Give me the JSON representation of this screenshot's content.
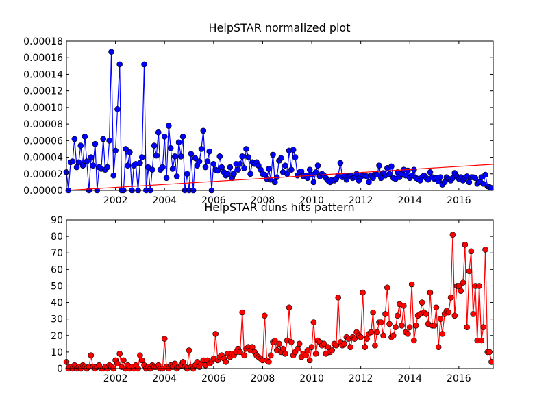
{
  "chart_data": [
    {
      "type": "line",
      "title": "HelpSTAR normalized plot",
      "xlim": [
        2000,
        2017.4
      ],
      "xticks": [
        2002,
        2004,
        2006,
        2008,
        2010,
        2012,
        2014,
        2016
      ],
      "ylim": [
        0,
        0.00018
      ],
      "yticks": [
        {
          "value": 0,
          "label": "0.00000"
        },
        {
          "value": 2e-05,
          "label": "0.00002"
        },
        {
          "value": 4e-05,
          "label": "0.00004"
        },
        {
          "value": 6e-05,
          "label": "0.00006"
        },
        {
          "value": 8e-05,
          "label": "0.00008"
        },
        {
          "value": 0.0001,
          "label": "0.00010"
        },
        {
          "value": 0.00012,
          "label": "0.00012"
        },
        {
          "value": 0.00014,
          "label": "0.00014"
        },
        {
          "value": 0.00016,
          "label": "0.00016"
        },
        {
          "value": 0.00018,
          "label": "0.00018"
        }
      ],
      "series": [
        {
          "color": "#0000ff",
          "marker": true,
          "x": [
            2000,
            2000.08,
            2000.17,
            2000.25,
            2000.33,
            2000.42,
            2000.5,
            2000.58,
            2000.67,
            2000.75,
            2000.83,
            2000.92,
            2001,
            2001.08,
            2001.17,
            2001.25,
            2001.33,
            2001.42,
            2001.5,
            2001.58,
            2001.67,
            2001.75,
            2001.83,
            2001.92,
            2002,
            2002.08,
            2002.17,
            2002.25,
            2002.33,
            2002.42,
            2002.5,
            2002.58,
            2002.67,
            2002.75,
            2002.83,
            2002.92,
            2003,
            2003.08,
            2003.17,
            2003.25,
            2003.33,
            2003.42,
            2003.5,
            2003.58,
            2003.67,
            2003.75,
            2003.83,
            2003.92,
            2004,
            2004.08,
            2004.17,
            2004.25,
            2004.33,
            2004.42,
            2004.5,
            2004.58,
            2004.67,
            2004.75,
            2004.83,
            2004.92,
            2005,
            2005.08,
            2005.17,
            2005.25,
            2005.33,
            2005.42,
            2005.5,
            2005.58,
            2005.67,
            2005.75,
            2005.83,
            2005.92,
            2006,
            2006.08,
            2006.17,
            2006.25,
            2006.33,
            2006.42,
            2006.5,
            2006.58,
            2006.67,
            2006.75,
            2006.83,
            2006.92,
            2007,
            2007.08,
            2007.17,
            2007.25,
            2007.33,
            2007.42,
            2007.5,
            2007.58,
            2007.67,
            2007.75,
            2007.83,
            2007.92,
            2008,
            2008.08,
            2008.17,
            2008.25,
            2008.33,
            2008.42,
            2008.5,
            2008.58,
            2008.67,
            2008.75,
            2008.83,
            2008.92,
            2009,
            2009.08,
            2009.17,
            2009.25,
            2009.33,
            2009.42,
            2009.5,
            2009.58,
            2009.67,
            2009.75,
            2009.83,
            2009.92,
            2010,
            2010.08,
            2010.17,
            2010.25,
            2010.33,
            2010.42,
            2010.5,
            2010.58,
            2010.67,
            2010.75,
            2010.83,
            2010.92,
            2011,
            2011.08,
            2011.17,
            2011.25,
            2011.33,
            2011.42,
            2011.5,
            2011.58,
            2011.67,
            2011.75,
            2011.83,
            2011.92,
            2012,
            2012.08,
            2012.17,
            2012.25,
            2012.33,
            2012.42,
            2012.5,
            2012.58,
            2012.67,
            2012.75,
            2012.83,
            2012.92,
            2013,
            2013.08,
            2013.17,
            2013.25,
            2013.33,
            2013.42,
            2013.5,
            2013.58,
            2013.67,
            2013.75,
            2013.83,
            2013.92,
            2014,
            2014.08,
            2014.17,
            2014.25,
            2014.33,
            2014.42,
            2014.5,
            2014.58,
            2014.67,
            2014.75,
            2014.83,
            2014.92,
            2015,
            2015.08,
            2015.17,
            2015.25,
            2015.33,
            2015.42,
            2015.5,
            2015.58,
            2015.67,
            2015.75,
            2015.83,
            2015.92,
            2016,
            2016.08,
            2016.17,
            2016.25,
            2016.33,
            2016.42,
            2016.5,
            2016.58,
            2016.67,
            2016.75,
            2016.83,
            2016.92,
            2017,
            2017.08,
            2017.17,
            2017.25,
            2017.33
          ],
          "values": [
            2.2e-05,
            0,
            3.4e-05,
            3.5e-05,
            6.2e-05,
            2.8e-05,
            3.4e-05,
            5.4e-05,
            3e-05,
            6.5e-05,
            3.5e-05,
            0,
            4e-05,
            3e-05,
            5.6e-05,
            0,
            2.8e-05,
            2.6e-05,
            6.2e-05,
            2.5e-05,
            2.8e-05,
            6e-05,
            0.000167,
            1.8e-05,
            4.8e-05,
            9.8e-05,
            0.000152,
            0,
            0,
            5e-05,
            3e-05,
            4.6e-05,
            0,
            3e-05,
            3.2e-05,
            0,
            3.3e-05,
            4e-05,
            0.000152,
            0,
            2.8e-05,
            0,
            2.5e-05,
            5.4e-05,
            4.2e-05,
            7e-05,
            2.5e-05,
            2.8e-05,
            6.5e-05,
            1.5e-05,
            7.8e-05,
            5.1e-05,
            2.6e-05,
            4.1e-05,
            1.7e-05,
            5.8e-05,
            4.1e-05,
            6.5e-05,
            0,
            2e-05,
            0,
            4.4e-05,
            0,
            3.9e-05,
            3e-05,
            3.5e-05,
            5e-05,
            7.2e-05,
            2.8e-05,
            3.5e-05,
            4.7e-05,
            0,
            3.2e-05,
            2.5e-05,
            2.4e-05,
            4.1e-05,
            2.8e-05,
            2.2e-05,
            1.8e-05,
            2e-05,
            2.8e-05,
            1.5e-05,
            2e-05,
            3.2e-05,
            2.5e-05,
            3.2e-05,
            4.1e-05,
            2.7e-05,
            5e-05,
            4e-05,
            2e-05,
            3.4e-05,
            3.2e-05,
            3.4e-05,
            3e-05,
            2.5e-05,
            2e-05,
            1.9e-05,
            1.4e-05,
            2.6e-05,
            1.3e-05,
            4.3e-05,
            1e-05,
            1.6e-05,
            3.6e-05,
            3.9e-05,
            2.2e-05,
            3e-05,
            2e-05,
            4.8e-05,
            2.5e-05,
            4.9e-05,
            4e-05,
            1.8e-05,
            2.2e-05,
            2.3e-05,
            1.7e-05,
            1.8e-05,
            1.5e-05,
            2.5e-05,
            1.9e-05,
            1e-05,
            2.2e-05,
            3e-05,
            1.7e-05,
            2e-05,
            1.8e-05,
            1.5e-05,
            1.2e-05,
            1e-05,
            1.3e-05,
            1.2e-05,
            1.4e-05,
            1.8e-05,
            3.3e-05,
            1.6e-05,
            1.8e-05,
            1.3e-05,
            1.7e-05,
            1.8e-05,
            1.5e-05,
            1.6e-05,
            2e-05,
            1.2e-05,
            1.6e-05,
            1.9e-05,
            1.8e-05,
            1.7e-05,
            1e-05,
            1.8e-05,
            1.5e-05,
            2e-05,
            1.9e-05,
            3e-05,
            1.5e-05,
            2.1e-05,
            1.8e-05,
            2.7e-05,
            2e-05,
            2.9e-05,
            1.5e-05,
            1.4e-05,
            2.2e-05,
            1.6e-05,
            2e-05,
            2.5e-05,
            1.8e-05,
            2.4e-05,
            1.5e-05,
            1.8e-05,
            2.5e-05,
            1.5e-05,
            1.4e-05,
            1.2e-05,
            1.6e-05,
            1.8e-05,
            1.5e-05,
            1.3e-05,
            2.2e-05,
            1.6e-05,
            1.4e-05,
            1.5e-05,
            1.1e-05,
            1.6e-05,
            7e-06,
            1e-05,
            1.6e-05,
            1.4e-05,
            1.2e-05,
            1.5e-05,
            2.1e-05,
            1.7e-05,
            1.4e-05,
            1.6e-05,
            1.2e-05,
            1.5e-05,
            1.7e-05,
            1e-05,
            1.6e-05,
            1.6e-05,
            1.5e-05,
            8e-06,
            1e-05,
            1.6e-05,
            8e-06,
            1.9e-05,
            5e-06,
            4e-06,
            3e-06
          ]
        },
        {
          "color": "#ff0000",
          "marker": false,
          "x": [
            2000,
            2017.4
          ],
          "values": [
            0,
            3.15e-05
          ]
        }
      ]
    },
    {
      "type": "line",
      "title": "HelpSTAR duns hits pattern",
      "xlim": [
        2000,
        2017.4
      ],
      "xticks": [
        2002,
        2004,
        2006,
        2008,
        2010,
        2012,
        2014,
        2016
      ],
      "ylim": [
        0,
        90
      ],
      "yticks": [
        0,
        10,
        20,
        30,
        40,
        50,
        60,
        70,
        80,
        90
      ],
      "series": [
        {
          "color": "#ff0000",
          "marker": true,
          "x": [
            2000,
            2000.08,
            2000.17,
            2000.25,
            2000.33,
            2000.42,
            2000.5,
            2000.58,
            2000.67,
            2000.75,
            2000.83,
            2000.92,
            2001,
            2001.08,
            2001.17,
            2001.25,
            2001.33,
            2001.42,
            2001.5,
            2001.58,
            2001.67,
            2001.75,
            2001.83,
            2001.92,
            2002,
            2002.08,
            2002.17,
            2002.25,
            2002.33,
            2002.42,
            2002.5,
            2002.58,
            2002.67,
            2002.75,
            2002.83,
            2002.92,
            2003,
            2003.08,
            2003.17,
            2003.25,
            2003.33,
            2003.42,
            2003.5,
            2003.58,
            2003.67,
            2003.75,
            2003.83,
            2003.92,
            2004,
            2004.08,
            2004.17,
            2004.25,
            2004.33,
            2004.42,
            2004.5,
            2004.58,
            2004.67,
            2004.75,
            2004.83,
            2004.92,
            2005,
            2005.08,
            2005.17,
            2005.25,
            2005.33,
            2005.42,
            2005.5,
            2005.58,
            2005.67,
            2005.75,
            2005.83,
            2005.92,
            2006,
            2006.08,
            2006.17,
            2006.25,
            2006.33,
            2006.42,
            2006.5,
            2006.58,
            2006.67,
            2006.75,
            2006.83,
            2006.92,
            2007,
            2007.08,
            2007.17,
            2007.25,
            2007.33,
            2007.42,
            2007.5,
            2007.58,
            2007.67,
            2007.75,
            2007.83,
            2007.92,
            2008,
            2008.08,
            2008.17,
            2008.25,
            2008.33,
            2008.42,
            2008.5,
            2008.58,
            2008.67,
            2008.75,
            2008.83,
            2008.92,
            2009,
            2009.08,
            2009.17,
            2009.25,
            2009.33,
            2009.42,
            2009.5,
            2009.58,
            2009.67,
            2009.75,
            2009.83,
            2009.92,
            2010,
            2010.08,
            2010.17,
            2010.25,
            2010.33,
            2010.42,
            2010.5,
            2010.58,
            2010.67,
            2010.75,
            2010.83,
            2010.92,
            2011,
            2011.08,
            2011.17,
            2011.25,
            2011.33,
            2011.42,
            2011.5,
            2011.58,
            2011.67,
            2011.75,
            2011.83,
            2011.92,
            2012,
            2012.08,
            2012.17,
            2012.25,
            2012.33,
            2012.42,
            2012.5,
            2012.58,
            2012.67,
            2012.75,
            2012.83,
            2012.92,
            2013,
            2013.08,
            2013.17,
            2013.25,
            2013.33,
            2013.42,
            2013.5,
            2013.58,
            2013.67,
            2013.75,
            2013.83,
            2013.92,
            2014,
            2014.08,
            2014.17,
            2014.25,
            2014.33,
            2014.42,
            2014.5,
            2014.58,
            2014.67,
            2014.75,
            2014.83,
            2014.92,
            2015,
            2015.08,
            2015.17,
            2015.25,
            2015.33,
            2015.42,
            2015.5,
            2015.58,
            2015.67,
            2015.75,
            2015.83,
            2015.92,
            2016,
            2016.08,
            2016.17,
            2016.25,
            2016.33,
            2016.42,
            2016.5,
            2016.58,
            2016.67,
            2016.75,
            2016.83,
            2016.92,
            2017,
            2017.08,
            2017.17,
            2017.25,
            2017.33
          ],
          "values": [
            4,
            0,
            1,
            0,
            2,
            0,
            1,
            0,
            2,
            1,
            0,
            1,
            8,
            1,
            0,
            1,
            2,
            0,
            0,
            1,
            0,
            2,
            1,
            0,
            5,
            3,
            9,
            1,
            5,
            0,
            2,
            0,
            1,
            0,
            2,
            0,
            8,
            5,
            2,
            0,
            1,
            0,
            2,
            1,
            1,
            2,
            0,
            0,
            18,
            1,
            0,
            2,
            1,
            3,
            0,
            1,
            2,
            4,
            1,
            0,
            11,
            1,
            0,
            2,
            4,
            1,
            3,
            5,
            2,
            5,
            3,
            4,
            6,
            21,
            5,
            7,
            8,
            6,
            4,
            9,
            7,
            9,
            8,
            10,
            12,
            10,
            34,
            8,
            12,
            13,
            11,
            13,
            10,
            8,
            7,
            6,
            5,
            32,
            5,
            4,
            8,
            16,
            17,
            11,
            15,
            10,
            12,
            9,
            17,
            37,
            16,
            8,
            10,
            12,
            15,
            7,
            9,
            8,
            11,
            5,
            13,
            28,
            9,
            17,
            16,
            14,
            15,
            9,
            13,
            10,
            11,
            15,
            14,
            43,
            16,
            14,
            15,
            19,
            18,
            13,
            19,
            18,
            22,
            20,
            19,
            46,
            13,
            18,
            21,
            22,
            34,
            14,
            22,
            28,
            28,
            20,
            33,
            49,
            27,
            19,
            20,
            25,
            32,
            39,
            26,
            38,
            22,
            21,
            25,
            51,
            17,
            26,
            32,
            33,
            40,
            34,
            33,
            27,
            46,
            26,
            26,
            37,
            13,
            30,
            21,
            33,
            35,
            34,
            43,
            81,
            32,
            50,
            50,
            47,
            52,
            75,
            25,
            59,
            71,
            33,
            50,
            17,
            50,
            17,
            25,
            72,
            10,
            10,
            4
          ]
        }
      ]
    }
  ]
}
